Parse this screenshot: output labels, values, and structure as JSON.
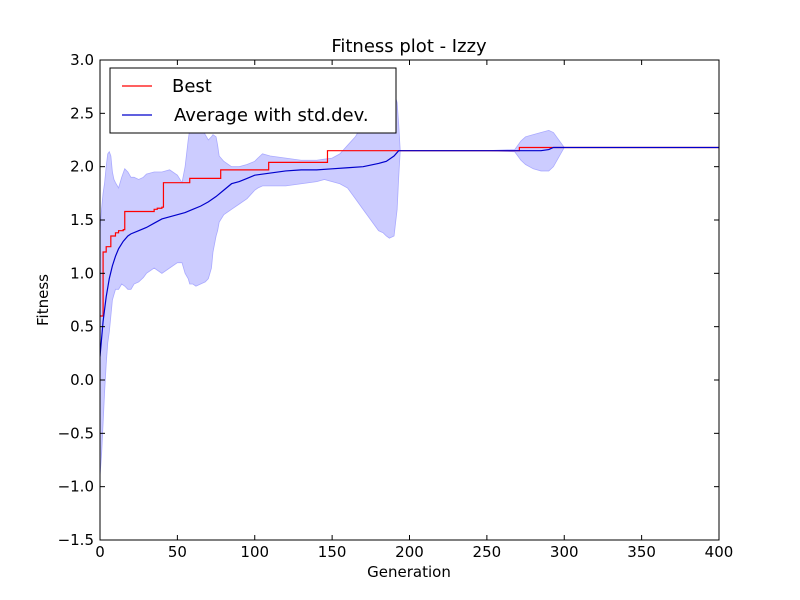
{
  "chart_data": {
    "type": "line",
    "title": "Fitness plot - Izzy",
    "xlabel": "Generation",
    "ylabel": "Fitness",
    "xlim": [
      0,
      400
    ],
    "ylim": [
      -1.5,
      3.0
    ],
    "xticks": [
      0,
      50,
      100,
      150,
      200,
      250,
      300,
      350,
      400
    ],
    "yticks": [
      -1.5,
      -1.0,
      -0.5,
      0.0,
      0.5,
      1.0,
      1.5,
      2.0,
      2.5,
      3.0
    ],
    "ytick_labels": [
      "−1.5",
      "−1.0",
      "−0.5",
      "0.0",
      "0.5",
      "1.0",
      "1.5",
      "2.0",
      "2.5",
      "3.0"
    ],
    "xtick_labels": [
      "0",
      "50",
      "100",
      "150",
      "200",
      "250",
      "300",
      "350",
      "400"
    ],
    "grid": false,
    "legend": {
      "position": "top-left",
      "entries": [
        {
          "name": "Best",
          "color": "#ff0000"
        },
        {
          "name": "Average with std.dev.",
          "color": "#0000cc"
        }
      ]
    },
    "colors": {
      "best": "#ff0000",
      "average": "#0000cc",
      "band": "#ccccff",
      "band_edge": "#aaaaff"
    },
    "series": [
      {
        "name": "Best",
        "step": true,
        "x": [
          0,
          2,
          4,
          7,
          10,
          12,
          15,
          16,
          17,
          35,
          37,
          40,
          41,
          57,
          58,
          77,
          78,
          108,
          109,
          146,
          147,
          193,
          270,
          271,
          292,
          293,
          400
        ],
        "y": [
          0.6,
          1.2,
          1.25,
          1.35,
          1.38,
          1.4,
          1.41,
          1.58,
          1.58,
          1.6,
          1.61,
          1.62,
          1.85,
          1.85,
          1.89,
          1.89,
          1.97,
          1.97,
          2.04,
          2.04,
          2.15,
          2.15,
          2.15,
          2.18,
          2.18,
          2.18,
          2.18
        ]
      },
      {
        "name": "Average with std.dev.",
        "x": [
          0,
          2,
          4,
          6,
          8,
          10,
          12,
          15,
          18,
          20,
          25,
          30,
          35,
          40,
          45,
          50,
          55,
          60,
          65,
          70,
          75,
          80,
          85,
          90,
          95,
          100,
          110,
          120,
          130,
          140,
          150,
          160,
          170,
          180,
          185,
          190,
          193,
          200,
          250,
          270,
          275,
          280,
          285,
          290,
          293,
          300,
          350,
          400
        ],
        "y": [
          0.22,
          0.55,
          0.78,
          0.95,
          1.07,
          1.16,
          1.23,
          1.3,
          1.35,
          1.37,
          1.4,
          1.43,
          1.47,
          1.51,
          1.53,
          1.55,
          1.57,
          1.6,
          1.63,
          1.67,
          1.72,
          1.78,
          1.84,
          1.86,
          1.89,
          1.92,
          1.94,
          1.96,
          1.97,
          1.97,
          1.98,
          1.99,
          2.0,
          2.03,
          2.05,
          2.1,
          2.15,
          2.15,
          2.15,
          2.15,
          2.15,
          2.15,
          2.15,
          2.16,
          2.18,
          2.18,
          2.18,
          2.18
        ]
      }
    ],
    "std_band": {
      "name": "std.dev.",
      "x": [
        0,
        1,
        2,
        3,
        4,
        5,
        6,
        7,
        8,
        9,
        10,
        12,
        14,
        16,
        18,
        20,
        22,
        25,
        28,
        30,
        35,
        40,
        45,
        50,
        53,
        55,
        57,
        58,
        60,
        62,
        65,
        68,
        70,
        72,
        73,
        75,
        76,
        77,
        80,
        85,
        90,
        95,
        100,
        102,
        105,
        110,
        120,
        130,
        140,
        145,
        150,
        155,
        160,
        165,
        170,
        175,
        180,
        183,
        185,
        187,
        190,
        192,
        193,
        194,
        200,
        250,
        268,
        270,
        272,
        275,
        280,
        285,
        290,
        293,
        300,
        350,
        400
      ],
      "upper": [
        1.4,
        1.6,
        1.75,
        1.85,
        2.0,
        2.12,
        2.14,
        2.1,
        1.95,
        1.88,
        1.85,
        1.8,
        1.9,
        1.98,
        1.95,
        1.9,
        1.9,
        1.88,
        1.9,
        1.93,
        1.95,
        1.95,
        1.97,
        1.92,
        1.85,
        2.0,
        2.25,
        2.35,
        2.4,
        2.42,
        2.38,
        2.3,
        2.25,
        2.28,
        2.3,
        2.28,
        2.2,
        2.1,
        2.05,
        2.0,
        2.0,
        2.02,
        2.05,
        2.08,
        2.12,
        2.1,
        2.08,
        2.06,
        2.06,
        2.07,
        2.08,
        2.12,
        2.2,
        2.28,
        2.4,
        2.55,
        2.6,
        2.65,
        2.7,
        2.72,
        2.7,
        2.6,
        2.4,
        2.15,
        2.15,
        2.15,
        2.16,
        2.2,
        2.24,
        2.28,
        2.3,
        2.32,
        2.34,
        2.32,
        2.18,
        2.18,
        2.18
      ],
      "lower": [
        -0.9,
        -0.7,
        -0.4,
        -0.1,
        0.15,
        0.35,
        0.45,
        0.6,
        0.75,
        0.8,
        0.85,
        0.85,
        0.9,
        0.88,
        0.85,
        0.85,
        0.9,
        0.92,
        0.96,
        1.0,
        1.05,
        1.0,
        1.05,
        1.1,
        1.1,
        1.0,
        0.95,
        0.9,
        0.9,
        0.88,
        0.9,
        0.92,
        0.95,
        1.05,
        1.2,
        1.35,
        1.4,
        1.48,
        1.55,
        1.6,
        1.65,
        1.7,
        1.78,
        1.8,
        1.82,
        1.82,
        1.82,
        1.84,
        1.86,
        1.88,
        1.86,
        1.84,
        1.8,
        1.7,
        1.6,
        1.5,
        1.4,
        1.38,
        1.35,
        1.33,
        1.35,
        1.6,
        1.9,
        2.15,
        2.15,
        2.15,
        2.14,
        2.1,
        2.06,
        2.02,
        1.98,
        1.96,
        1.96,
        2.0,
        2.18,
        2.18,
        2.18
      ]
    }
  }
}
